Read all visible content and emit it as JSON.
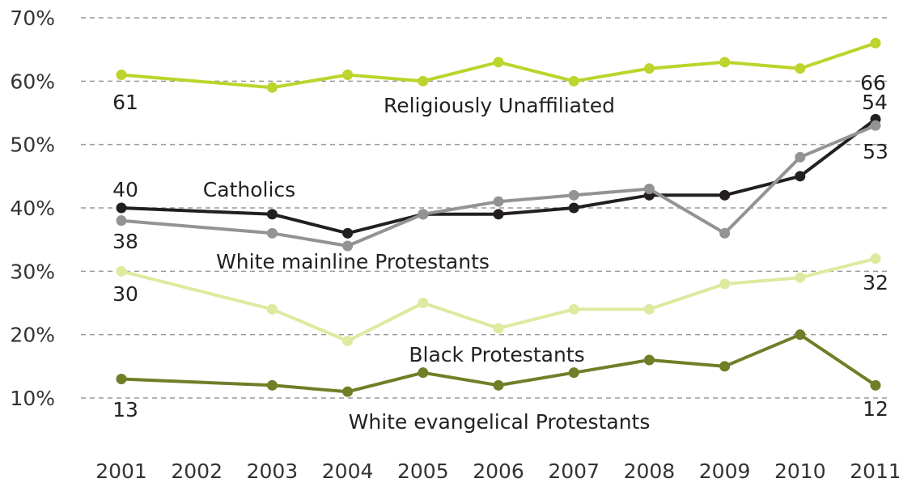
{
  "chart_data": {
    "type": "line",
    "title": "",
    "xlabel": "",
    "ylabel": "",
    "categories": [
      "2001",
      "2002",
      "2003",
      "2004",
      "2005",
      "2006",
      "2007",
      "2008",
      "2009",
      "2010",
      "2011"
    ],
    "y_ticks": [
      "70%",
      "60%",
      "50%",
      "40%",
      "30%",
      "20%",
      "10%"
    ],
    "ylim": [
      10,
      70
    ],
    "grid": true,
    "series": [
      {
        "name": "Religiously Unaffiliated",
        "color": "#bcd42b",
        "points": [
          [
            2001,
            61
          ],
          [
            2003,
            59
          ],
          [
            2004,
            61
          ],
          [
            2005,
            60
          ],
          [
            2006,
            63
          ],
          [
            2007,
            60
          ],
          [
            2008,
            62
          ],
          [
            2009,
            63
          ],
          [
            2010,
            62
          ],
          [
            2011,
            66
          ]
        ],
        "data_labels": {
          "first": "61",
          "last": "66"
        }
      },
      {
        "name": "Catholics",
        "color": "#231f20",
        "points": [
          [
            2001,
            40
          ],
          [
            2003,
            39
          ],
          [
            2004,
            36
          ],
          [
            2005,
            39
          ],
          [
            2006,
            39
          ],
          [
            2007,
            40
          ],
          [
            2008,
            42
          ],
          [
            2009,
            42
          ],
          [
            2010,
            45
          ],
          [
            2011,
            54
          ]
        ],
        "data_labels": {
          "first": "40",
          "last": "54"
        }
      },
      {
        "name": "White mainline Protestants",
        "color": "#939393",
        "points": [
          [
            2001,
            38
          ],
          [
            2003,
            36
          ],
          [
            2004,
            34
          ],
          [
            2005,
            39
          ],
          [
            2006,
            41
          ],
          [
            2007,
            42
          ],
          [
            2008,
            43
          ],
          [
            2009,
            36
          ],
          [
            2010,
            48
          ],
          [
            2011,
            53
          ]
        ],
        "data_labels": {
          "first": "38",
          "last": "53"
        }
      },
      {
        "name": "Black Protestants",
        "color": "#dfe99f",
        "points": [
          [
            2001,
            30
          ],
          [
            2003,
            24
          ],
          [
            2004,
            19
          ],
          [
            2005,
            25
          ],
          [
            2006,
            21
          ],
          [
            2007,
            24
          ],
          [
            2008,
            24
          ],
          [
            2009,
            28
          ],
          [
            2010,
            29
          ],
          [
            2011,
            32
          ]
        ],
        "data_labels": {
          "first": "30",
          "last": "32"
        }
      },
      {
        "name": "White evangelical Protestants",
        "color": "#6e7f27",
        "points": [
          [
            2001,
            13
          ],
          [
            2003,
            12
          ],
          [
            2004,
            11
          ],
          [
            2005,
            14
          ],
          [
            2006,
            12
          ],
          [
            2007,
            14
          ],
          [
            2008,
            16
          ],
          [
            2009,
            15
          ],
          [
            2010,
            20
          ],
          [
            2011,
            12
          ]
        ],
        "data_labels": {
          "first": "13",
          "last": "12"
        }
      }
    ]
  }
}
